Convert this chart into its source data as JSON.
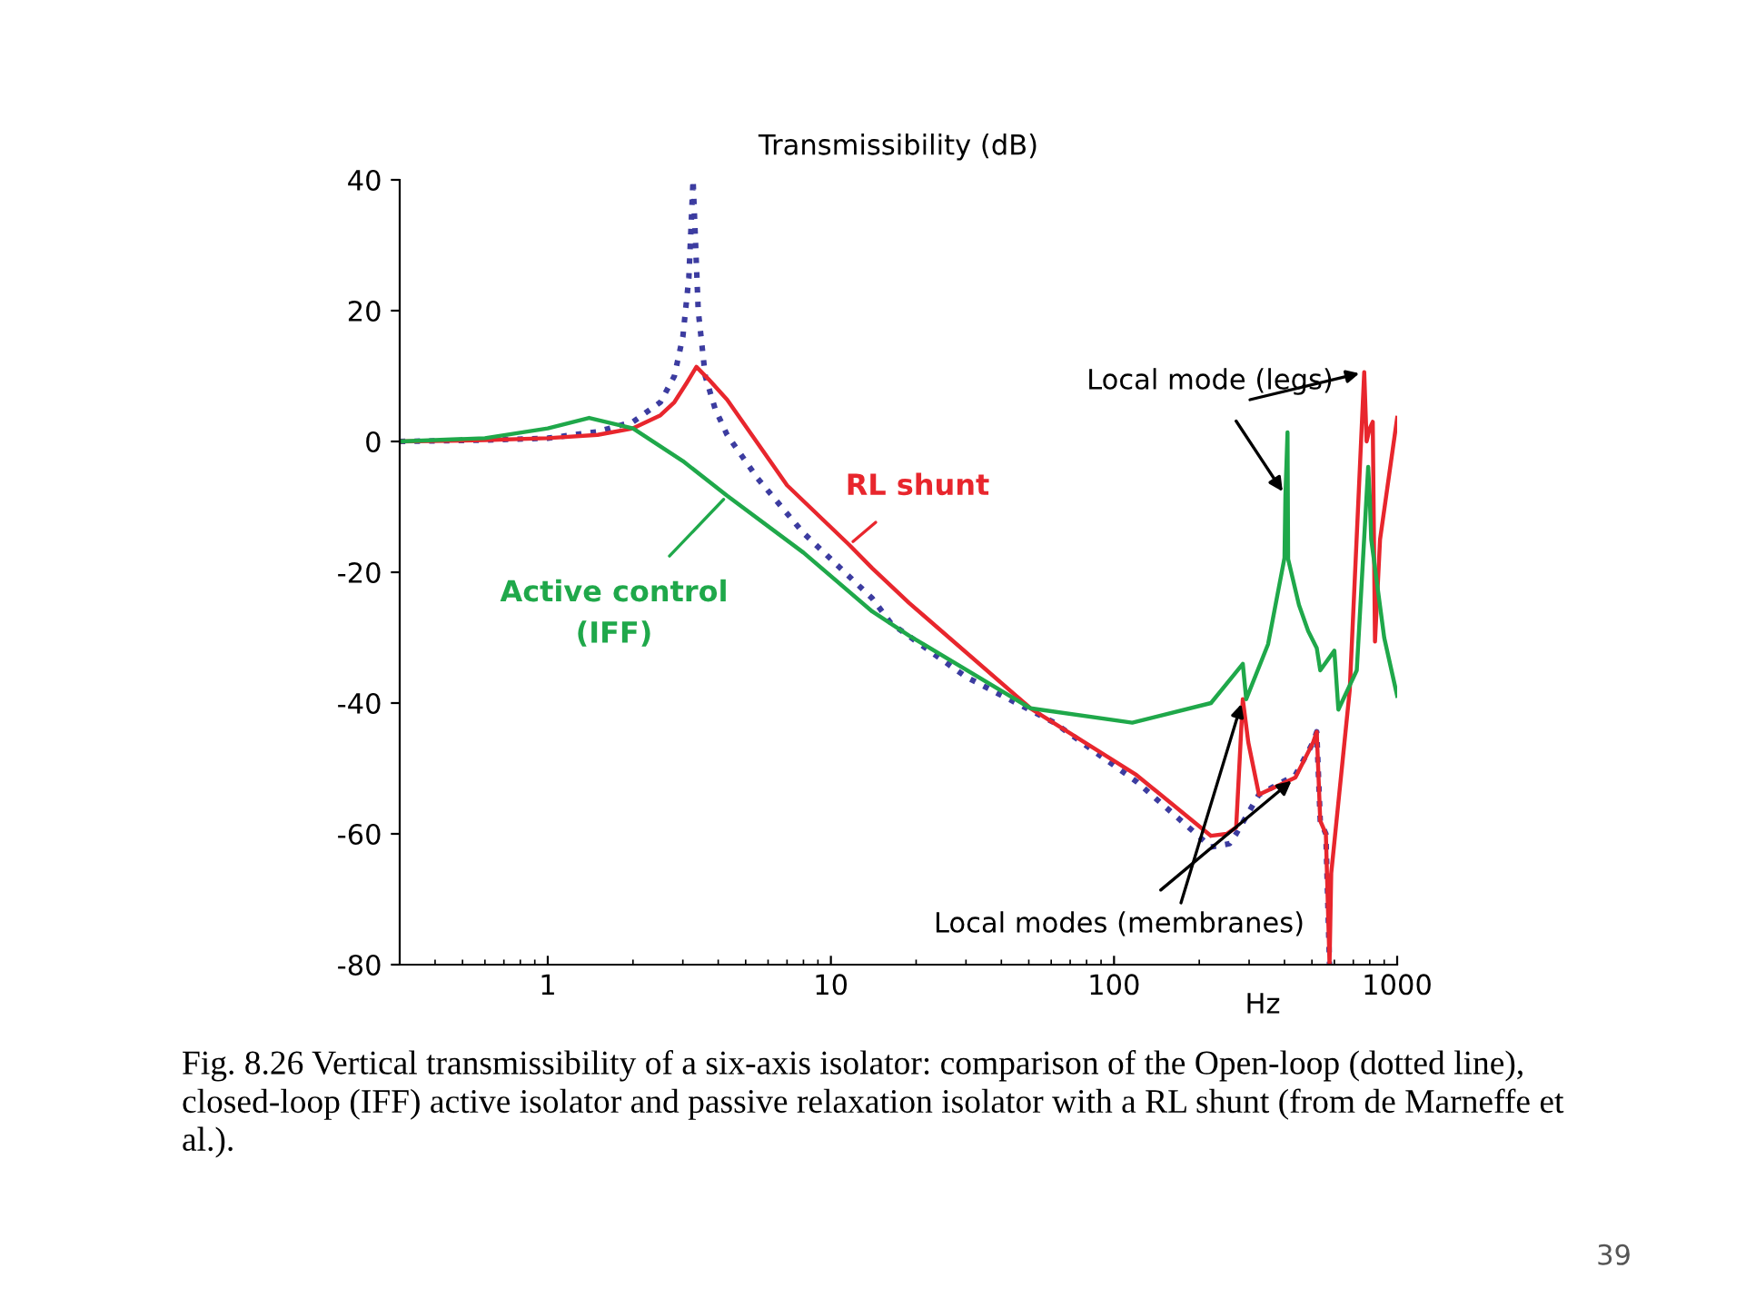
{
  "chart_data": {
    "type": "line",
    "title": "Transmissibility (dB)",
    "xlabel": "Hz",
    "log": "x",
    "xlim": [
      0.3,
      1000
    ],
    "xticks": [
      1,
      10,
      100,
      1000
    ],
    "ylim": [
      -80,
      40
    ],
    "yticks": [
      -80,
      -60,
      -40,
      -20,
      0,
      20,
      40
    ],
    "grid": false,
    "legend": false,
    "marker": "none",
    "series": [
      {
        "color": "#3c3ca0",
        "line_style": "dotted",
        "x": [
          0.3,
          0.6,
          1,
          1.5,
          2,
          2.5,
          2.8,
          3.0,
          3.15,
          3.26,
          3.4,
          3.6,
          3.9,
          4.3,
          5.5,
          8,
          14,
          16.3,
          30,
          61.5,
          120,
          220,
          256,
          270,
          325,
          437,
          505,
          520,
          535,
          560,
          577
        ],
        "values": [
          0,
          0.2,
          0.5,
          1.5,
          3,
          6,
          10,
          16,
          25,
          40,
          20,
          10,
          5,
          1,
          -5.6,
          -14,
          -24,
          -27.8,
          -36,
          -43,
          -52,
          -62,
          -61.5,
          -60,
          -54,
          -51,
          -46,
          -44.4,
          -58,
          -60,
          -80
        ]
      },
      {
        "color": "#e8262d",
        "line_style": "solid",
        "x": [
          0.3,
          0.6,
          1,
          1.5,
          2,
          2.5,
          2.8,
          3.1,
          3.35,
          3.7,
          4.3,
          7,
          11.6,
          14,
          18.9,
          50.7,
          120,
          220,
          250,
          270,
          285,
          298,
          325,
          437,
          505,
          520,
          535,
          560,
          577,
          585,
          680,
          765,
          780,
          800,
          820,
          835,
          870,
          1000
        ],
        "values": [
          0,
          0.2,
          0.5,
          1,
          2,
          4,
          6,
          9,
          11.4,
          9.5,
          6.4,
          -6.7,
          -15.8,
          -19.4,
          -24.7,
          -40.8,
          -51,
          -60.3,
          -60,
          -59,
          -39.4,
          -46,
          -54,
          -51.4,
          -46,
          -44.4,
          -58,
          -60,
          -80,
          -66,
          -38,
          10.6,
          0,
          2,
          3,
          -30.6,
          -15,
          3.6
        ]
      },
      {
        "color": "#1fa84a",
        "line_style": "solid",
        "x": [
          0.3,
          0.6,
          1,
          1.4,
          2,
          3,
          4.3,
          8,
          14,
          18.9,
          50.7,
          116,
          220,
          285,
          293,
          350,
          400,
          403,
          410,
          412,
          450,
          485,
          520,
          535,
          600,
          620,
          720,
          790,
          800,
          810,
          900,
          1000
        ],
        "values": [
          0,
          0.5,
          2,
          3.6,
          2,
          -3,
          -8.3,
          -17,
          -26,
          -29.7,
          -40.8,
          -43,
          -40,
          -34,
          -39.4,
          -31,
          -17.8,
          -8.3,
          1.4,
          -18,
          -25,
          -29,
          -31.6,
          -35,
          -32,
          -41,
          -35,
          -3.9,
          -8.4,
          -15,
          -30,
          -38.9
        ]
      }
    ],
    "annotations": [
      {
        "text": "RL shunt",
        "x": 11.6,
        "y": -15.8
      },
      {
        "text": "Active control\n(IFF)",
        "x": 4.3,
        "y": -8.3
      },
      {
        "text": "Local mode (legs)",
        "x": 403,
        "y": -8.3
      },
      {
        "text": "Local modes (membranes)",
        "x": 437,
        "y": -51.4
      },
      "Fig. 8.26 Vertical transmissibility of a six-axis isolator: comparison of the Open-loop (dotted line), closed-loop (IFF) active isolator and passive relaxation isolator with a RL shunt (from de Marneffe et al.).",
      "39"
    ]
  }
}
